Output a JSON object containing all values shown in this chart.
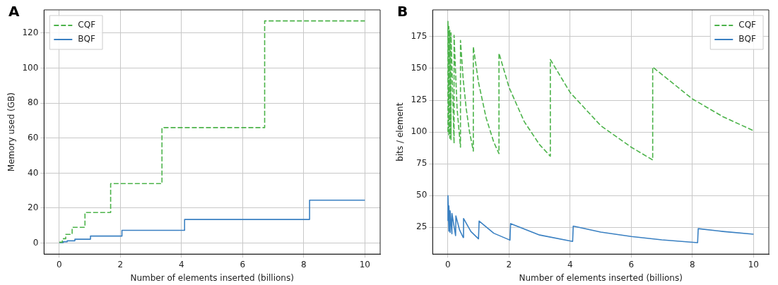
{
  "chart_data": [
    {
      "type": "step",
      "title": "A",
      "xlabel": "Number of elements inserted (billions)",
      "ylabel": "Memory used (GB)",
      "xlim": [
        -0.5,
        10.5
      ],
      "xticks": [
        0,
        2,
        4,
        6,
        8,
        10
      ],
      "ylim": [
        -6.3,
        133.3
      ],
      "yticks": [
        0,
        20,
        40,
        60,
        80,
        100,
        120
      ],
      "grid": true,
      "legend": "top left",
      "marker": "none",
      "series": [
        {
          "name": "CQF",
          "color": "#4cb34a",
          "line_style": "dashed",
          "x": [
            0,
            0.1,
            0.21,
            0.42,
            0.84,
            1.68,
            3.36,
            6.72,
            10
          ],
          "values": [
            0.5,
            2.5,
            5,
            9,
            17.5,
            34,
            66,
            127,
            127
          ]
        },
        {
          "name": "BQF",
          "color": "#3a80c2",
          "line_style": "solid",
          "x": [
            0,
            0.13,
            0.26,
            0.51,
            1.02,
            2.05,
            4.1,
            8.19,
            10
          ],
          "values": [
            0.3,
            0.8,
            1.3,
            2.2,
            4,
            7.3,
            13.5,
            24.5,
            24.5
          ]
        }
      ]
    },
    {
      "type": "line",
      "title": "B",
      "xlabel": "Number of elements inserted (billions)",
      "ylabel": "bits / element",
      "xlim": [
        -0.5,
        10.5
      ],
      "xticks": [
        0,
        2,
        4,
        6,
        8,
        10
      ],
      "ylim": [
        4,
        196
      ],
      "yticks": [
        25,
        50,
        75,
        100,
        125,
        150,
        175
      ],
      "grid": true,
      "legend": "top right",
      "marker": "none",
      "series": [
        {
          "name": "CQF",
          "color": "#4cb34a",
          "line_style": "dashed",
          "x": [
            0,
            0,
            0.03,
            0.03,
            0.06,
            0.06,
            0.1,
            0.1,
            0.2,
            0.2,
            0.3,
            0.41,
            0.41,
            0.5,
            0.6,
            0.7,
            0.83,
            0.83,
            1.0,
            1.25,
            1.5,
            1.67,
            1.67,
            2.0,
            2.5,
            3.0,
            3.35,
            3.35,
            4,
            5,
            6,
            6.7,
            6.7,
            8,
            9,
            10
          ],
          "values": [
            100,
            187,
            97,
            183,
            95,
            180,
            94,
            178,
            91,
            176,
            118,
            88,
            172,
            141,
            118,
            101,
            85,
            167,
            139,
            111,
            92,
            83,
            162,
            135,
            108,
            90,
            81,
            157,
            131,
            105,
            88,
            78,
            151,
            126,
            112,
            101
          ]
        },
        {
          "name": "BQF",
          "color": "#3a80c2",
          "line_style": "solid",
          "x": [
            0,
            0,
            0.03,
            0.03,
            0.07,
            0.07,
            0.13,
            0.13,
            0.25,
            0.26,
            0.38,
            0.5,
            0.51,
            0.75,
            1.0,
            1.02,
            1.5,
            2.03,
            2.05,
            3,
            4.08,
            4.1,
            5,
            6,
            7,
            8.17,
            8.19,
            9,
            10
          ],
          "values": [
            30,
            50,
            22,
            42,
            21,
            38,
            20,
            36,
            18.5,
            34,
            23,
            17,
            32,
            21.8,
            16,
            30,
            20.4,
            15,
            28,
            19,
            14,
            26,
            21.3,
            17.8,
            15.2,
            13,
            24,
            21.8,
            19.6
          ]
        }
      ]
    }
  ]
}
